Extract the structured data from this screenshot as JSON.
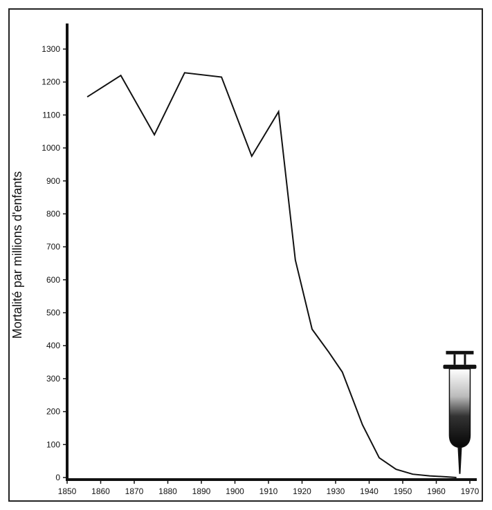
{
  "chart_data": {
    "type": "line",
    "title": "",
    "xlabel": "",
    "ylabel": "Mortalité par millions d'enfants",
    "xlim": [
      1850,
      1970
    ],
    "ylim": [
      0,
      1300
    ],
    "xticks": [
      1850,
      1860,
      1870,
      1880,
      1890,
      1900,
      1910,
      1920,
      1930,
      1940,
      1950,
      1960,
      1970
    ],
    "yticks": [
      0,
      100,
      200,
      300,
      400,
      500,
      600,
      700,
      800,
      900,
      1000,
      1100,
      1200,
      1300
    ],
    "grid": false,
    "legend": "none",
    "series": [
      {
        "x": [
          1856,
          1866,
          1876,
          1885,
          1896,
          1905,
          1913,
          1918,
          1923,
          1928,
          1932,
          1935,
          1938,
          1943,
          1948,
          1953,
          1958,
          1963,
          1966
        ],
        "y": [
          1155,
          1220,
          1040,
          1228,
          1215,
          975,
          1110,
          660,
          450,
          380,
          320,
          240,
          160,
          60,
          25,
          10,
          5,
          2,
          0
        ],
        "color": "#111111"
      }
    ],
    "annotation": {
      "icon": "syringe-icon",
      "x": 1967,
      "y": 380
    }
  }
}
